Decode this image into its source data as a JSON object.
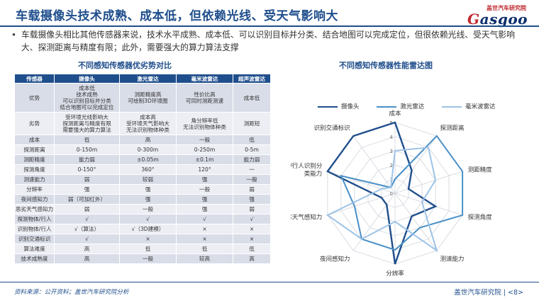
{
  "header": {
    "title": "车载摄像头技术成熟、成本低，但依赖光线、受天气影响大",
    "logo_cn": "盖世汽车研究院",
    "logo_en_g": "G",
    "logo_en_rest": "asgoo"
  },
  "bullet": "车载摄像头相比其他传感器来说，技术水平成熟、成本低、可以识别目标并分类、结合地图可以完成定位，但很依赖光线、受天气影响大、探测距离与精度有限；此外，需要强大的算力算法支撑",
  "table": {
    "title": "不同感知传感器优劣势对比",
    "headers": [
      "传感器",
      "摄像头",
      "激光雷达",
      "毫米波雷达",
      "超声波雷达"
    ],
    "rows": [
      [
        "优势",
        "成本低\n技术成熟\n可以识别目标并分类\n结合地图可以完成定位",
        "测距精度高\n可绘制3D环境图",
        "性价比高\n可同时测距测速",
        "成本低"
      ],
      [
        "劣势",
        "受环境光线影响大\n探测距离与精度有限\n需要强大的算力算法",
        "成本高\n受环境天气影响大\n无法识别物体种类",
        "角分辨率低\n无法识别物体种类",
        "测距短"
      ],
      [
        "成本",
        "低",
        "高",
        "一般",
        "低"
      ],
      [
        "探测距离",
        "0-150m",
        "0-300m",
        "0-250m",
        "0-5m"
      ],
      [
        "测距精度",
        "能力弱",
        "±0.05m",
        "±0.1m",
        "能力弱"
      ],
      [
        "探测角度",
        "0-150°",
        "360°",
        "120°",
        "一"
      ],
      [
        "测速能力",
        "弱",
        "较弱",
        "强",
        "一般"
      ],
      [
        "分辨率",
        "强",
        "强",
        "一般",
        "弱"
      ],
      [
        "夜间感知力",
        "弱（可加红外）",
        "强",
        "强",
        "强"
      ],
      [
        "恶劣天气感知力",
        "弱",
        "一般",
        "强",
        "弱"
      ],
      [
        "探测物体/行人",
        "√",
        "√",
        "√",
        "√"
      ],
      [
        "识别物体/行人",
        "√（算法）",
        "√（3D建模）",
        "×",
        "×"
      ],
      [
        "识别交通标识",
        "√",
        "×",
        "×",
        "×"
      ],
      [
        "算法难度",
        "高",
        "低",
        "低",
        "低"
      ],
      [
        "技术成熟度",
        "高",
        "一般",
        "较高",
        "高"
      ]
    ]
  },
  "chart": {
    "title": "不同感知传感器性能雷达图"
  },
  "chart_data": {
    "type": "radar",
    "axes": [
      "成本",
      "探测距离",
      "测距精度",
      "探测角度",
      "测速能力",
      "分辨率",
      "夜间感知力",
      "恶劣天气感知力",
      "物体/行人识别分类能力",
      "识别交通标识"
    ],
    "axis_label_lines": [
      [
        "成本"
      ],
      [
        "探测距离"
      ],
      [
        "测距精度"
      ],
      [
        "探测角度"
      ],
      [
        "测速能力"
      ],
      [
        "分辨率"
      ],
      [
        "夜间感知力"
      ],
      [
        "恶劣天气感知力"
      ],
      [
        "物体/行人识别分",
        "类能力"
      ],
      [
        "识别交通标识"
      ]
    ],
    "ticks": [
      0,
      1,
      2,
      3,
      4,
      5
    ],
    "rmax": 5,
    "series": [
      {
        "name": "摄像头",
        "color": "#1f4e8c",
        "values": [
          5,
          2,
          1,
          3,
          2,
          5,
          1,
          1,
          5,
          5
        ]
      },
      {
        "name": "激光雷达",
        "color": "#4a90c8",
        "values": [
          1,
          5,
          5,
          5,
          3,
          4,
          4,
          3,
          4,
          0.5
        ]
      },
      {
        "name": "毫米波雷达",
        "color": "#9dc3e6",
        "values": [
          3,
          4,
          3,
          2,
          5,
          2,
          4,
          5,
          1,
          0.5
        ]
      }
    ]
  },
  "footer": {
    "source": "资料来源：公开资料；盖世汽车研究院分析",
    "right": "盖世汽车研究院 | <8>"
  }
}
